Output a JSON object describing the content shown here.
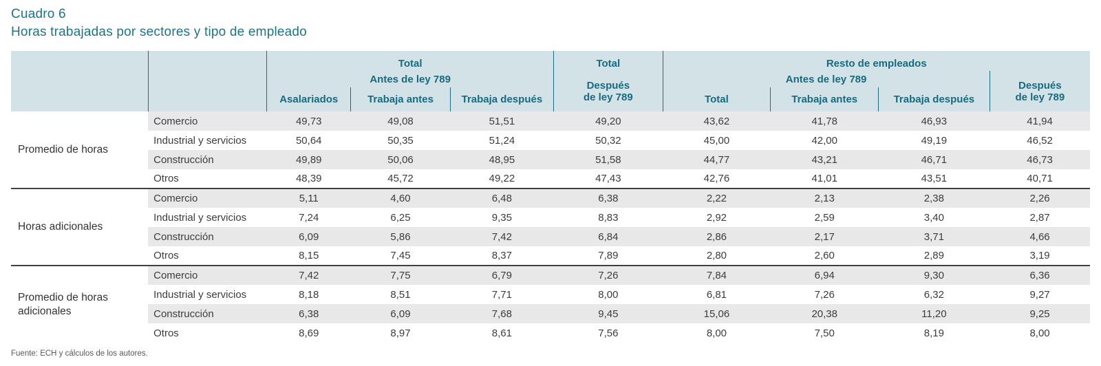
{
  "title": {
    "line1": "Cuadro 6",
    "line2": "Horas trabajadas por sectores y tipo de empleado"
  },
  "header": {
    "total_antes_group": "Total",
    "antes_789": "Antes de ley 789",
    "col_asalariados": "Asalariados",
    "col_trabaja_antes": "Trabaja antes",
    "col_trabaja_despues": "Trabaja después",
    "total_despues_top": "Total",
    "total_despues_label": "Después\nde ley 789",
    "resto_group": "Resto de empleados",
    "resto_antes_789": "Antes de ley 789",
    "resto_col_total": "Total",
    "resto_col_trabaja_antes": "Trabaja antes",
    "resto_col_trabaja_despues": "Trabaja después",
    "resto_despues_label": "Después\nde ley 789"
  },
  "table": {
    "groups": [
      {
        "label": "Promedio de horas",
        "rows": [
          {
            "sector": "Comercio",
            "values": [
              "49,73",
              "49,08",
              "51,51",
              "49,20",
              "43,62",
              "41,78",
              "46,93",
              "41,94"
            ]
          },
          {
            "sector": "Industrial y servicios",
            "values": [
              "50,64",
              "50,35",
              "51,24",
              "50,32",
              "45,00",
              "42,00",
              "49,19",
              "46,52"
            ]
          },
          {
            "sector": "Construcción",
            "values": [
              "49,89",
              "50,06",
              "48,95",
              "51,58",
              "44,77",
              "43,21",
              "46,71",
              "46,73"
            ]
          },
          {
            "sector": "Otros",
            "values": [
              "48,39",
              "45,72",
              "49,22",
              "47,43",
              "42,76",
              "41,01",
              "43,51",
              "40,71"
            ]
          }
        ]
      },
      {
        "label": "Horas adicionales",
        "rows": [
          {
            "sector": "Comercio",
            "values": [
              "5,11",
              "4,60",
              "6,48",
              "6,38",
              "2,22",
              "2,13",
              "2,38",
              "2,26"
            ]
          },
          {
            "sector": "Industrial y servicios",
            "values": [
              "7,24",
              "6,25",
              "9,35",
              "8,83",
              "2,92",
              "2,59",
              "3,40",
              "2,87"
            ]
          },
          {
            "sector": "Construcción",
            "values": [
              "6,09",
              "5,86",
              "7,42",
              "6,84",
              "2,86",
              "2,17",
              "3,71",
              "4,66"
            ]
          },
          {
            "sector": "Otros",
            "values": [
              "8,15",
              "7,45",
              "8,37",
              "7,89",
              "2,80",
              "2,60",
              "2,89",
              "3,19"
            ]
          }
        ]
      },
      {
        "label": "Promedio de horas adicionales",
        "rows": [
          {
            "sector": "Comercio",
            "values": [
              "7,42",
              "7,75",
              "6,79",
              "7,26",
              "7,84",
              "6,94",
              "9,30",
              "6,36"
            ]
          },
          {
            "sector": "Industrial y servicios",
            "values": [
              "8,18",
              "8,51",
              "7,71",
              "8,00",
              "6,81",
              "7,26",
              "6,32",
              "9,27"
            ]
          },
          {
            "sector": "Construcción",
            "values": [
              "6,38",
              "6,09",
              "7,68",
              "9,45",
              "15,06",
              "20,38",
              "11,20",
              "9,25"
            ]
          },
          {
            "sector": "Otros",
            "values": [
              "8,69",
              "8,97",
              "8,61",
              "7,56",
              "8,00",
              "7,50",
              "8,19",
              "8,00"
            ]
          }
        ]
      }
    ]
  },
  "footer": {
    "source": "Fuente: ECH y cálculos de los autores."
  },
  "colors": {
    "accent_teal": "#1d7489",
    "header_band": "#d3e2e6",
    "row_shade": "#e8e8e8",
    "separator_dark": "#404040"
  }
}
